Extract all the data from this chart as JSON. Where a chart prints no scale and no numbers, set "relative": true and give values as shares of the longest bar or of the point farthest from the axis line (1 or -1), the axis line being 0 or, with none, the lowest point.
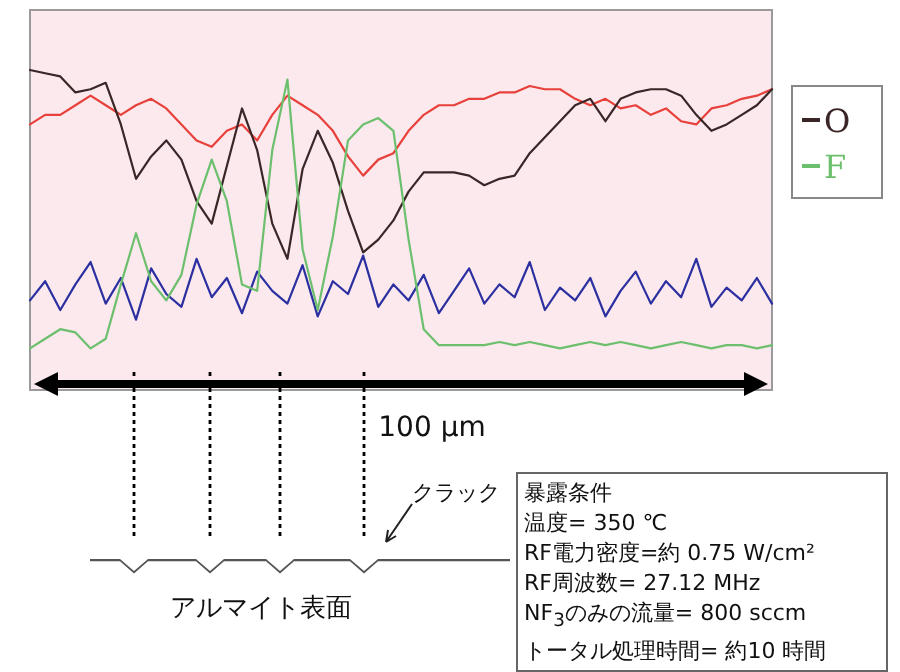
{
  "chart_data": {
    "type": "line",
    "relative": true,
    "legend": "right",
    "categories": [
      null,
      null,
      null,
      null,
      null,
      null,
      null,
      null,
      null,
      null,
      null,
      null,
      null,
      null,
      null,
      null,
      null,
      null,
      null,
      null,
      null,
      null,
      null,
      null,
      null,
      null,
      null,
      null,
      null,
      null,
      null,
      null,
      null,
      null,
      null,
      null,
      null,
      null,
      null,
      null,
      null,
      null,
      null,
      null,
      null,
      null,
      null,
      null,
      null,
      null
    ],
    "series": [
      {
        "color": "#2b2fa0",
        "values": [
          0.28,
          0.34,
          0.25,
          0.33,
          0.4,
          0.27,
          0.35,
          0.22,
          0.38,
          0.3,
          0.26,
          0.41,
          0.29,
          0.35,
          0.24,
          0.37,
          0.31,
          0.27,
          0.39,
          0.23,
          0.34,
          0.3,
          0.42,
          0.26,
          0.33,
          0.28,
          0.36,
          0.24,
          0.31,
          0.38,
          0.27,
          0.33,
          0.29,
          0.4,
          0.25,
          0.32,
          0.28,
          0.35,
          0.23,
          0.31,
          0.37,
          0.27,
          0.34,
          0.29,
          0.41,
          0.26,
          0.32,
          0.28,
          0.35,
          0.27
        ]
      },
      {
        "color": "#e8403a",
        "values": [
          0.83,
          0.86,
          0.86,
          0.89,
          0.92,
          0.89,
          0.86,
          0.89,
          0.91,
          0.88,
          0.83,
          0.78,
          0.76,
          0.81,
          0.83,
          0.78,
          0.86,
          0.92,
          0.89,
          0.86,
          0.81,
          0.73,
          0.67,
          0.72,
          0.74,
          0.81,
          0.86,
          0.89,
          0.89,
          0.91,
          0.91,
          0.93,
          0.93,
          0.95,
          0.94,
          0.94,
          0.91,
          0.89,
          0.91,
          0.88,
          0.89,
          0.86,
          0.88,
          0.84,
          0.83,
          0.88,
          0.89,
          0.91,
          0.92,
          0.94
        ]
      },
      {
        "name": "O",
        "color": "#3a2626",
        "values": [
          1.0,
          0.99,
          0.98,
          0.93,
          0.94,
          0.96,
          0.83,
          0.66,
          0.73,
          0.78,
          0.72,
          0.59,
          0.52,
          0.7,
          0.88,
          0.75,
          0.52,
          0.41,
          0.69,
          0.81,
          0.71,
          0.56,
          0.43,
          0.47,
          0.53,
          0.62,
          0.68,
          0.68,
          0.68,
          0.67,
          0.64,
          0.66,
          0.67,
          0.74,
          0.79,
          0.84,
          0.89,
          0.91,
          0.84,
          0.91,
          0.93,
          0.94,
          0.94,
          0.92,
          0.86,
          0.81,
          0.83,
          0.86,
          0.89,
          0.94
        ]
      },
      {
        "name": "F",
        "color": "#6cbf6c",
        "values": [
          0.13,
          0.16,
          0.19,
          0.18,
          0.13,
          0.16,
          0.33,
          0.49,
          0.34,
          0.28,
          0.36,
          0.58,
          0.72,
          0.59,
          0.33,
          0.31,
          0.75,
          0.97,
          0.44,
          0.25,
          0.48,
          0.78,
          0.83,
          0.85,
          0.81,
          0.47,
          0.19,
          0.14,
          0.14,
          0.14,
          0.14,
          0.15,
          0.14,
          0.15,
          0.14,
          0.13,
          0.14,
          0.15,
          0.14,
          0.15,
          0.14,
          0.13,
          0.14,
          0.15,
          0.14,
          0.13,
          0.14,
          0.14,
          0.13,
          0.14
        ]
      }
    ],
    "annotations": [
      "100 μm",
      "クラック",
      "アルマイト表面",
      "暴露条件",
      "温度= 350 ℃",
      "RF電力密度=約 0.75 W/cm²",
      "RF周波数= 27.12 MHz",
      "NF$_{3}$のみの流量= 800 sccm",
      "トータル処理時間= 約10 時間"
    ]
  }
}
